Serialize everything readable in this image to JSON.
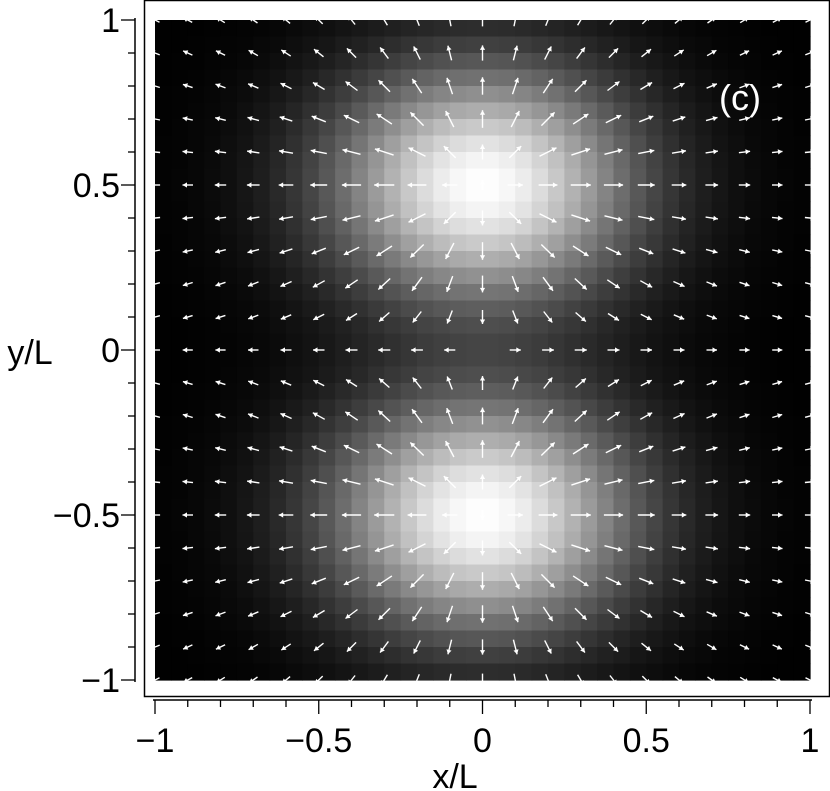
{
  "chart_data": {
    "type": "heatmap",
    "subtype": "vector-field-over-intensity-map",
    "panel_label": "(c)",
    "xlabel": "x/L",
    "ylabel": "y/L",
    "xlim": [
      -1,
      1
    ],
    "ylim": [
      -1,
      1
    ],
    "xticks": [
      {
        "value": -1,
        "label": "−1"
      },
      {
        "value": -0.5,
        "label": "−0.5"
      },
      {
        "value": 0,
        "label": "0"
      },
      {
        "value": 0.5,
        "label": "0.5"
      },
      {
        "value": 1,
        "label": "1"
      }
    ],
    "yticks": [
      {
        "value": 1,
        "label": "1"
      },
      {
        "value": 0.5,
        "label": "0.5"
      },
      {
        "value": 0,
        "label": "0"
      },
      {
        "value": -0.5,
        "label": "−0.5"
      },
      {
        "value": -1,
        "label": "−1"
      }
    ],
    "minor_tick_step": 0.1,
    "grid": false,
    "colormap": "grayscale (black = low, white = high)",
    "intensity_peaks": [
      {
        "x": 0,
        "y": 0.5
      },
      {
        "x": 0,
        "y": -0.5
      }
    ],
    "vector_field": "arrows point radially outward from the two bright maxima at (0, 0.5) and (0, -0.5)",
    "arrow_grid_spacing": 0.1,
    "colors": {
      "arrow": "#ffffff",
      "background": "#ffffff",
      "frame": "#000000",
      "text": "#000000"
    }
  }
}
